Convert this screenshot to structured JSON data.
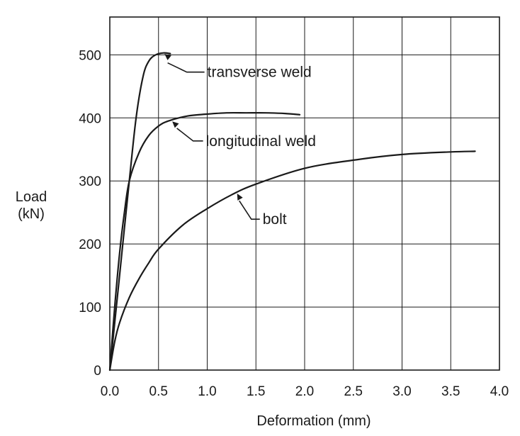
{
  "chart_data": {
    "type": "line",
    "title": "",
    "xlabel": "Deformation (mm)",
    "ylabel": [
      "Load",
      "(kN)"
    ],
    "xlim": [
      0.0,
      4.0
    ],
    "ylim": [
      0,
      560
    ],
    "x_ticks": [
      0.0,
      0.5,
      1.0,
      1.5,
      2.0,
      2.5,
      3.0,
      3.5,
      4.0
    ],
    "x_tick_labels": [
      "0.0",
      "0.5",
      "1.0",
      "1.5",
      "2.0",
      "2.5",
      "3.0",
      "3.5",
      "4.0"
    ],
    "y_ticks": [
      0,
      100,
      200,
      300,
      400,
      500
    ],
    "y_tick_labels": [
      "0",
      "100",
      "200",
      "300",
      "400",
      "500"
    ],
    "grid": true,
    "legend": "none",
    "series": [
      {
        "name": "transverse weld",
        "color": "#1a1a1a",
        "points": [
          [
            0,
            0
          ],
          [
            0.1,
            150
          ],
          [
            0.2,
            300
          ],
          [
            0.27,
            400
          ],
          [
            0.34,
            465
          ],
          [
            0.4,
            490
          ],
          [
            0.47,
            500
          ],
          [
            0.55,
            503
          ],
          [
            0.62,
            502
          ]
        ]
      },
      {
        "name": "longitudinal weld",
        "color": "#1a1a1a",
        "points": [
          [
            0,
            0
          ],
          [
            0.05,
            100
          ],
          [
            0.1,
            185
          ],
          [
            0.15,
            250
          ],
          [
            0.2,
            300
          ],
          [
            0.3,
            345
          ],
          [
            0.4,
            372
          ],
          [
            0.5,
            387
          ],
          [
            0.6,
            395
          ],
          [
            0.8,
            403
          ],
          [
            1.0,
            406
          ],
          [
            1.2,
            408
          ],
          [
            1.4,
            408
          ],
          [
            1.6,
            408
          ],
          [
            1.8,
            407
          ],
          [
            1.95,
            405
          ]
        ]
      },
      {
        "name": "bolt",
        "color": "#1a1a1a",
        "points": [
          [
            0,
            0
          ],
          [
            0.05,
            45
          ],
          [
            0.1,
            75
          ],
          [
            0.2,
            115
          ],
          [
            0.3,
            145
          ],
          [
            0.4,
            170
          ],
          [
            0.5,
            192
          ],
          [
            0.75,
            230
          ],
          [
            1.0,
            256
          ],
          [
            1.25,
            278
          ],
          [
            1.5,
            295
          ],
          [
            2.0,
            320
          ],
          [
            2.5,
            333
          ],
          [
            3.0,
            342
          ],
          [
            3.5,
            346
          ],
          [
            3.75,
            347
          ]
        ]
      }
    ],
    "annotations": [
      {
        "text": "transverse weld",
        "series": "transverse weld",
        "target": [
          0.55,
          503
        ]
      },
      {
        "text": "longitudinal weld",
        "series": "longitudinal weld",
        "target": [
          0.63,
          396
        ]
      },
      {
        "text": "bolt",
        "series": "bolt",
        "target": [
          1.3,
          282
        ]
      }
    ]
  }
}
